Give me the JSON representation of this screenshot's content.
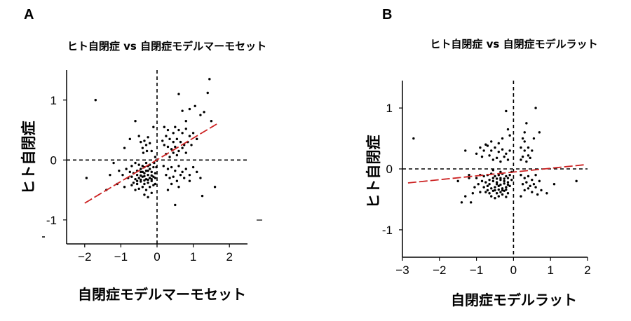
{
  "chart_data": [
    {
      "panel_letter": "A",
      "type": "scatter",
      "title": "ヒト自閉症 vs 自閉症モデルマーモセット",
      "xlabel": "自閉症モデルマーモセット",
      "ylabel": "ヒト自閉症",
      "xlim": [
        -2.5,
        2.5
      ],
      "ylim": [
        -1.4,
        1.5
      ],
      "x_ticks": [
        {
          "value": -2,
          "label": "−2"
        },
        {
          "value": -1,
          "label": "−1"
        },
        {
          "value": 0,
          "label": "0"
        },
        {
          "value": 1,
          "label": "1"
        },
        {
          "value": 2,
          "label": "2"
        }
      ],
      "y_ticks": [
        {
          "value": 1,
          "label": "1"
        },
        {
          "value": 0,
          "label": "0"
        },
        {
          "value": -1,
          "label": "-1"
        }
      ],
      "reference_lines": {
        "x": 0,
        "y": 0,
        "style": "dashed",
        "color": "#000000"
      },
      "fit_line": {
        "x": [
          -2.0,
          1.65
        ],
        "y": [
          -0.72,
          0.6
        ],
        "color": "#cc2222",
        "style": "dashed"
      },
      "grid": false,
      "point_color": "#000000",
      "points": [
        [
          -1.7,
          1.0
        ],
        [
          -1.95,
          -0.3
        ],
        [
          -1.3,
          -0.25
        ],
        [
          -1.4,
          -0.5
        ],
        [
          -1.1,
          -0.4
        ],
        [
          -0.75,
          0.35
        ],
        [
          -0.6,
          0.65
        ],
        [
          -0.9,
          0.2
        ],
        [
          -0.5,
          0.4
        ],
        [
          -0.45,
          0.3
        ],
        [
          -0.4,
          0.2
        ],
        [
          -0.35,
          0.32
        ],
        [
          -0.3,
          0.25
        ],
        [
          -0.25,
          0.38
        ],
        [
          -0.2,
          0.28
        ],
        [
          -0.15,
          0.15
        ],
        [
          -0.28,
          0.15
        ],
        [
          -0.38,
          0.12
        ],
        [
          0.6,
          1.1
        ],
        [
          1.45,
          1.35
        ],
        [
          1.4,
          1.12
        ],
        [
          1.2,
          0.75
        ],
        [
          1.05,
          0.9
        ],
        [
          0.9,
          0.85
        ],
        [
          0.8,
          0.65
        ],
        [
          1.5,
          0.65
        ],
        [
          1.3,
          0.8
        ],
        [
          0.7,
          0.82
        ],
        [
          0.2,
          0.55
        ],
        [
          0.3,
          0.5
        ],
        [
          0.45,
          0.45
        ],
        [
          0.5,
          0.55
        ],
        [
          0.6,
          0.5
        ],
        [
          0.7,
          0.45
        ],
        [
          0.8,
          0.52
        ],
        [
          0.9,
          0.4
        ],
        [
          1.0,
          0.45
        ],
        [
          1.1,
          0.35
        ],
        [
          0.25,
          0.4
        ],
        [
          0.35,
          0.35
        ],
        [
          0.45,
          0.3
        ],
        [
          0.55,
          0.35
        ],
        [
          0.65,
          0.3
        ],
        [
          0.75,
          0.25
        ],
        [
          0.85,
          0.3
        ],
        [
          0.95,
          0.25
        ],
        [
          0.2,
          0.25
        ],
        [
          0.3,
          0.22
        ],
        [
          0.4,
          0.18
        ],
        [
          0.5,
          0.22
        ],
        [
          0.6,
          0.15
        ],
        [
          0.7,
          0.2
        ],
        [
          0.8,
          0.12
        ],
        [
          0.25,
          0.1
        ],
        [
          0.35,
          0.05
        ],
        [
          0.45,
          0.12
        ],
        [
          0.55,
          0.08
        ],
        [
          0.15,
          0.32
        ],
        [
          0.18,
          -0.1
        ],
        [
          0.3,
          -0.15
        ],
        [
          0.4,
          -0.12
        ],
        [
          0.5,
          -0.18
        ],
        [
          0.6,
          -0.1
        ],
        [
          0.7,
          -0.2
        ],
        [
          0.8,
          -0.15
        ],
        [
          0.9,
          -0.25
        ],
        [
          1.0,
          -0.12
        ],
        [
          1.1,
          -0.2
        ],
        [
          0.25,
          -0.25
        ],
        [
          0.35,
          -0.3
        ],
        [
          0.45,
          -0.28
        ],
        [
          0.55,
          -0.35
        ],
        [
          0.65,
          -0.25
        ],
        [
          0.75,
          -0.3
        ],
        [
          0.4,
          -0.4
        ],
        [
          0.6,
          -0.45
        ],
        [
          0.3,
          -0.5
        ],
        [
          0.9,
          -0.35
        ],
        [
          0.5,
          -0.75
        ],
        [
          1.25,
          -0.6
        ],
        [
          1.6,
          -0.45
        ],
        [
          1.2,
          -0.3
        ],
        [
          -0.1,
          0.55
        ],
        [
          -0.05,
          0.05
        ],
        [
          -0.08,
          -0.05
        ],
        [
          -0.02,
          -0.12
        ],
        [
          -1.2,
          -0.05
        ],
        [
          -0.85,
          -0.15
        ],
        [
          -0.7,
          -0.1
        ],
        [
          -0.6,
          -0.05
        ],
        [
          -0.5,
          -0.08
        ],
        [
          -0.4,
          -0.1
        ],
        [
          -0.3,
          -0.05
        ],
        [
          -0.2,
          -0.08
        ],
        [
          -0.1,
          -0.12
        ],
        [
          -0.75,
          -0.2
        ],
        [
          -0.65,
          -0.22
        ],
        [
          -0.55,
          -0.18
        ],
        [
          -0.45,
          -0.2
        ],
        [
          -0.35,
          -0.22
        ],
        [
          -0.25,
          -0.18
        ],
        [
          -0.15,
          -0.2
        ],
        [
          -0.8,
          -0.3
        ],
        [
          -0.7,
          -0.28
        ],
        [
          -0.6,
          -0.32
        ],
        [
          -0.5,
          -0.3
        ],
        [
          -0.4,
          -0.28
        ],
        [
          -0.3,
          -0.32
        ],
        [
          -0.2,
          -0.3
        ],
        [
          -0.1,
          -0.28
        ],
        [
          -0.65,
          -0.38
        ],
        [
          -0.55,
          -0.4
        ],
        [
          -0.45,
          -0.36
        ],
        [
          -0.35,
          -0.4
        ],
        [
          -0.25,
          -0.38
        ],
        [
          -0.15,
          -0.35
        ],
        [
          -0.5,
          -0.48
        ],
        [
          -0.4,
          -0.45
        ],
        [
          -0.3,
          -0.5
        ],
        [
          -0.2,
          -0.45
        ],
        [
          -0.6,
          -0.5
        ],
        [
          -0.95,
          -0.25
        ],
        [
          -1.05,
          -0.18
        ],
        [
          -0.9,
          -0.45
        ],
        [
          -0.35,
          -0.58
        ],
        [
          -0.25,
          -0.62
        ],
        [
          -0.15,
          -0.55
        ],
        [
          -0.05,
          -0.4
        ],
        [
          -0.45,
          -0.15
        ],
        [
          -0.35,
          -0.12
        ],
        [
          -0.25,
          -0.1
        ],
        [
          -0.55,
          -0.25
        ],
        [
          -0.45,
          -0.26
        ],
        [
          -0.35,
          -0.27
        ],
        [
          -0.25,
          -0.25
        ],
        [
          -0.15,
          -0.26
        ],
        [
          -0.05,
          -0.22
        ],
        [
          -0.55,
          -0.35
        ],
        [
          -0.45,
          -0.33
        ],
        [
          -0.35,
          -0.34
        ],
        [
          -0.25,
          -0.33
        ],
        [
          -0.15,
          -0.32
        ],
        [
          -0.05,
          -0.3
        ],
        [
          -0.4,
          -0.2
        ],
        [
          -0.3,
          -0.18
        ],
        [
          -0.2,
          -0.15
        ],
        [
          -0.7,
          -0.42
        ],
        [
          -0.1,
          -0.42
        ]
      ]
    },
    {
      "panel_letter": "B",
      "type": "scatter",
      "title": "ヒト自閉症 vs 自閉症モデルラット",
      "xlabel": "自閉症モデルラット",
      "ylabel": "ヒト自閉症",
      "xlim": [
        -3.0,
        2.0
      ],
      "ylim": [
        -1.45,
        1.45
      ],
      "x_ticks": [
        {
          "value": -3,
          "label": "−3"
        },
        {
          "value": -2,
          "label": "−2"
        },
        {
          "value": -1,
          "label": "−1"
        },
        {
          "value": 0,
          "label": "0"
        },
        {
          "value": 1,
          "label": "1"
        },
        {
          "value": 2,
          "label": "2"
        }
      ],
      "y_ticks": [
        {
          "value": 1,
          "label": "1"
        },
        {
          "value": 0,
          "label": "0"
        },
        {
          "value": -1,
          "label": "-1"
        }
      ],
      "reference_lines": {
        "x": 0,
        "y": 0,
        "style": "dashed",
        "color": "#000000"
      },
      "fit_line": {
        "x": [
          -2.85,
          1.95
        ],
        "y": [
          -0.23,
          0.07
        ],
        "color": "#cc2222",
        "style": "dashed"
      },
      "grid": false,
      "point_color": "#000000",
      "points": [
        [
          -2.7,
          0.5
        ],
        [
          -1.5,
          -0.2
        ],
        [
          -1.2,
          -0.15
        ],
        [
          -1.4,
          -0.55
        ],
        [
          -1.1,
          -0.4
        ],
        [
          -0.75,
          0.4
        ],
        [
          -0.2,
          0.95
        ],
        [
          -0.1,
          0.55
        ],
        [
          -0.15,
          0.65
        ],
        [
          -0.9,
          0.35
        ],
        [
          -0.8,
          0.3
        ],
        [
          -0.7,
          0.38
        ],
        [
          -0.6,
          0.3
        ],
        [
          -0.5,
          0.35
        ],
        [
          -0.4,
          0.28
        ],
        [
          -0.3,
          0.32
        ],
        [
          -0.2,
          0.25
        ],
        [
          -0.1,
          0.3
        ],
        [
          -1.0,
          0.25
        ],
        [
          -0.85,
          0.2
        ],
        [
          -0.65,
          0.22
        ],
        [
          -0.45,
          0.18
        ],
        [
          -0.25,
          0.2
        ],
        [
          -0.15,
          0.15
        ],
        [
          -0.55,
          0.15
        ],
        [
          -0.35,
          0.12
        ],
        [
          -0.6,
          0.45
        ],
        [
          -0.4,
          0.42
        ],
        [
          -0.3,
          0.5
        ],
        [
          -1.3,
          0.3
        ],
        [
          0.6,
          1.0
        ],
        [
          0.35,
          0.75
        ],
        [
          0.3,
          0.6
        ],
        [
          0.25,
          0.5
        ],
        [
          0.3,
          0.45
        ],
        [
          0.4,
          0.35
        ],
        [
          0.2,
          0.35
        ],
        [
          0.3,
          0.3
        ],
        [
          0.25,
          0.2
        ],
        [
          0.4,
          0.22
        ],
        [
          0.2,
          0.15
        ],
        [
          0.35,
          0.12
        ],
        [
          0.45,
          0.18
        ],
        [
          0.5,
          0.3
        ],
        [
          0.55,
          0.5
        ],
        [
          0.7,
          0.6
        ],
        [
          0.2,
          -0.1
        ],
        [
          0.3,
          -0.15
        ],
        [
          0.4,
          -0.12
        ],
        [
          0.5,
          -0.18
        ],
        [
          0.6,
          -0.1
        ],
        [
          0.25,
          -0.25
        ],
        [
          0.35,
          -0.22
        ],
        [
          0.45,
          -0.28
        ],
        [
          0.55,
          -0.25
        ],
        [
          0.3,
          -0.35
        ],
        [
          0.4,
          -0.32
        ],
        [
          0.5,
          -0.38
        ],
        [
          0.6,
          -0.3
        ],
        [
          0.7,
          -0.2
        ],
        [
          0.75,
          -0.35
        ],
        [
          0.65,
          -0.42
        ],
        [
          0.2,
          -0.45
        ],
        [
          1.7,
          -0.2
        ],
        [
          1.1,
          -0.25
        ],
        [
          0.9,
          -0.4
        ],
        [
          -1.2,
          -0.1
        ],
        [
          -1.0,
          -0.15
        ],
        [
          -0.9,
          -0.1
        ],
        [
          -0.8,
          -0.12
        ],
        [
          -0.7,
          -0.1
        ],
        [
          -0.6,
          -0.08
        ],
        [
          -0.5,
          -0.12
        ],
        [
          -0.4,
          -0.1
        ],
        [
          -0.3,
          -0.08
        ],
        [
          -0.2,
          -0.12
        ],
        [
          -0.1,
          -0.1
        ],
        [
          -0.85,
          -0.2
        ],
        [
          -0.75,
          -0.22
        ],
        [
          -0.65,
          -0.18
        ],
        [
          -0.55,
          -0.2
        ],
        [
          -0.45,
          -0.22
        ],
        [
          -0.35,
          -0.18
        ],
        [
          -0.25,
          -0.2
        ],
        [
          -0.15,
          -0.22
        ],
        [
          -0.05,
          -0.18
        ],
        [
          -0.8,
          -0.3
        ],
        [
          -0.7,
          -0.28
        ],
        [
          -0.6,
          -0.32
        ],
        [
          -0.5,
          -0.3
        ],
        [
          -0.4,
          -0.28
        ],
        [
          -0.3,
          -0.32
        ],
        [
          -0.2,
          -0.3
        ],
        [
          -0.1,
          -0.28
        ],
        [
          -0.75,
          -0.38
        ],
        [
          -0.65,
          -0.4
        ],
        [
          -0.55,
          -0.36
        ],
        [
          -0.45,
          -0.4
        ],
        [
          -0.35,
          -0.38
        ],
        [
          -0.25,
          -0.36
        ],
        [
          -0.15,
          -0.4
        ],
        [
          -0.6,
          -0.45
        ],
        [
          -0.5,
          -0.48
        ],
        [
          -0.4,
          -0.45
        ],
        [
          -0.3,
          -0.42
        ],
        [
          -0.2,
          -0.46
        ],
        [
          -1.3,
          -0.45
        ],
        [
          -1.05,
          -0.3
        ],
        [
          -0.95,
          -0.25
        ],
        [
          -1.15,
          -0.55
        ],
        [
          -0.45,
          -0.25
        ],
        [
          -0.35,
          -0.26
        ],
        [
          -0.25,
          -0.24
        ],
        [
          -0.15,
          -0.26
        ],
        [
          -0.55,
          -0.15
        ],
        [
          -0.45,
          -0.16
        ],
        [
          -0.35,
          -0.15
        ],
        [
          -0.25,
          -0.16
        ],
        [
          -0.15,
          -0.15
        ],
        [
          -0.5,
          -0.35
        ],
        [
          -0.4,
          -0.34
        ],
        [
          -0.3,
          -0.35
        ],
        [
          -0.2,
          -0.34
        ],
        [
          -0.65,
          -0.25
        ],
        [
          -0.7,
          -0.35
        ],
        [
          -0.9,
          -0.38
        ],
        [
          -0.05,
          -0.05
        ],
        [
          -0.35,
          -0.05
        ],
        [
          -0.55,
          -0.02
        ]
      ]
    }
  ]
}
